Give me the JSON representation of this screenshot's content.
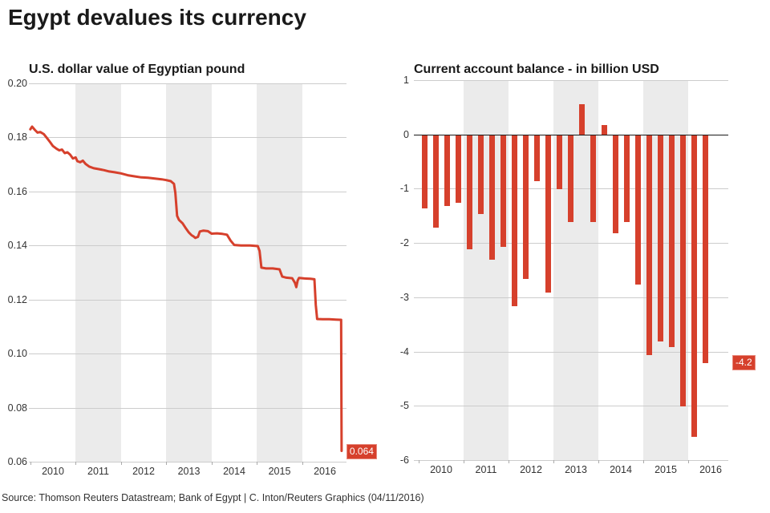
{
  "header": {
    "title": "Egypt devalues its currency"
  },
  "footer": {
    "source": "Source: Thomson Reuters Datastream; Bank of Egypt | C. Inton/Reuters Graphics (04/11/2016)"
  },
  "colors": {
    "accent_red": "#d6402c",
    "band_gray": "#ebebeb",
    "gridline_gray": "#cccccc",
    "zero_line": "#1a1a1a",
    "title_text": "#1a1a1a",
    "tick_text": "#333333",
    "label_box_text": "#ffffff"
  },
  "chart_data": [
    {
      "type": "line",
      "title": "U.S. dollar value of Egyptian pound",
      "xlabel": "",
      "ylabel": "",
      "ylim": [
        0.06,
        0.2
      ],
      "xlim": [
        2009.97,
        2017.0
      ],
      "grid": "horizontal",
      "legend": "none",
      "shaded_years": [
        2011,
        2013,
        2015
      ],
      "y_ticks": [
        "0.20",
        "0.18",
        "0.16",
        "0.14",
        "0.12",
        "0.10",
        "0.08",
        "0.06"
      ],
      "y_tick_values": [
        0.2,
        0.18,
        0.16,
        0.14,
        0.12,
        0.1,
        0.08,
        0.06
      ],
      "x_ticks": [
        "2010",
        "2011",
        "2012",
        "2013",
        "2014",
        "2015",
        "2016"
      ],
      "x_tick_values": [
        2010,
        2011,
        2012,
        2013,
        2014,
        2015,
        2016
      ],
      "end_label": "0.064",
      "end_value": 0.064,
      "series": [
        {
          "name": "U.S. dollar value of Egyptian pound",
          "color": "#d6402c",
          "points": [
            [
              2010.0,
              0.183
            ],
            [
              2010.04,
              0.184
            ],
            [
              2010.1,
              0.1828
            ],
            [
              2010.16,
              0.1818
            ],
            [
              2010.22,
              0.182
            ],
            [
              2010.3,
              0.1812
            ],
            [
              2010.38,
              0.1795
            ],
            [
              2010.44,
              0.1782
            ],
            [
              2010.5,
              0.1768
            ],
            [
              2010.58,
              0.1758
            ],
            [
              2010.64,
              0.1752
            ],
            [
              2010.7,
              0.1755
            ],
            [
              2010.76,
              0.1742
            ],
            [
              2010.82,
              0.1745
            ],
            [
              2010.88,
              0.1736
            ],
            [
              2010.94,
              0.1722
            ],
            [
              2011.0,
              0.1726
            ],
            [
              2011.04,
              0.1712
            ],
            [
              2011.1,
              0.1708
            ],
            [
              2011.16,
              0.1714
            ],
            [
              2011.22,
              0.1702
            ],
            [
              2011.3,
              0.1692
            ],
            [
              2011.4,
              0.1686
            ],
            [
              2011.5,
              0.1683
            ],
            [
              2011.62,
              0.1679
            ],
            [
              2011.74,
              0.1674
            ],
            [
              2011.86,
              0.1671
            ],
            [
              2012.0,
              0.1667
            ],
            [
              2012.15,
              0.166
            ],
            [
              2012.3,
              0.1656
            ],
            [
              2012.45,
              0.1652
            ],
            [
              2012.6,
              0.1651
            ],
            [
              2012.75,
              0.1648
            ],
            [
              2012.9,
              0.1645
            ],
            [
              2013.0,
              0.1642
            ],
            [
              2013.1,
              0.1638
            ],
            [
              2013.17,
              0.1628
            ],
            [
              2013.2,
              0.1595
            ],
            [
              2013.24,
              0.151
            ],
            [
              2013.28,
              0.1495
            ],
            [
              2013.36,
              0.1482
            ],
            [
              2013.44,
              0.1462
            ],
            [
              2013.5,
              0.1448
            ],
            [
              2013.56,
              0.1438
            ],
            [
              2013.6,
              0.1434
            ],
            [
              2013.64,
              0.1428
            ],
            [
              2013.7,
              0.1432
            ],
            [
              2013.74,
              0.1452
            ],
            [
              2013.82,
              0.1455
            ],
            [
              2013.92,
              0.1453
            ],
            [
              2014.0,
              0.1444
            ],
            [
              2014.12,
              0.1445
            ],
            [
              2014.24,
              0.1443
            ],
            [
              2014.34,
              0.144
            ],
            [
              2014.42,
              0.1418
            ],
            [
              2014.5,
              0.1402
            ],
            [
              2014.65,
              0.14
            ],
            [
              2014.85,
              0.14
            ],
            [
              2015.02,
              0.1398
            ],
            [
              2015.06,
              0.138
            ],
            [
              2015.1,
              0.1318
            ],
            [
              2015.2,
              0.1315
            ],
            [
              2015.35,
              0.1315
            ],
            [
              2015.5,
              0.1312
            ],
            [
              2015.56,
              0.1285
            ],
            [
              2015.65,
              0.1281
            ],
            [
              2015.78,
              0.1279
            ],
            [
              2015.84,
              0.1262
            ],
            [
              2015.87,
              0.1246
            ],
            [
              2015.9,
              0.127
            ],
            [
              2015.93,
              0.128
            ],
            [
              2016.05,
              0.1278
            ],
            [
              2016.18,
              0.1277
            ],
            [
              2016.27,
              0.1275
            ],
            [
              2016.3,
              0.118
            ],
            [
              2016.33,
              0.1128
            ],
            [
              2016.45,
              0.1127
            ],
            [
              2016.6,
              0.1127
            ],
            [
              2016.75,
              0.1126
            ],
            [
              2016.86,
              0.1125
            ],
            [
              2016.87,
              0.064
            ]
          ]
        }
      ]
    },
    {
      "type": "bar",
      "title": "Current account balance - in billion USD",
      "xlabel": "",
      "ylabel": "",
      "ylim": [
        -6,
        1
      ],
      "grid": "horizontal",
      "legend": "none",
      "bar_color": "#d6402c",
      "shaded_years": [
        2011,
        2013,
        2015
      ],
      "y_ticks": [
        "1",
        "0",
        "-1",
        "-2",
        "-3",
        "-4",
        "-5",
        "-6"
      ],
      "y_tick_values": [
        1,
        0,
        -1,
        -2,
        -3,
        -4,
        -5,
        -6
      ],
      "x_ticks": [
        "2010",
        "2011",
        "2012",
        "2013",
        "2014",
        "2015",
        "2016"
      ],
      "x_tick_values": [
        2010,
        2011,
        2012,
        2013,
        2014,
        2015,
        2016
      ],
      "end_label": "-4.2",
      "end_value": -4.2,
      "categories": [
        "2010 Q1",
        "2010 Q2",
        "2010 Q3",
        "2010 Q4",
        "2011 Q1",
        "2011 Q2",
        "2011 Q3",
        "2011 Q4",
        "2012 Q1",
        "2012 Q2",
        "2012 Q3",
        "2012 Q4",
        "2013 Q1",
        "2013 Q2",
        "2013 Q3",
        "2013 Q4",
        "2014 Q1",
        "2014 Q2",
        "2014 Q3",
        "2014 Q4",
        "2015 Q1",
        "2015 Q2",
        "2015 Q3",
        "2015 Q4",
        "2016 Q1",
        "2016 Q2"
      ],
      "values": [
        -1.35,
        -1.7,
        -1.3,
        -1.25,
        -2.1,
        -1.45,
        -2.3,
        -2.05,
        -3.15,
        -2.65,
        -0.85,
        -2.9,
        -1.0,
        -1.6,
        0.55,
        -1.6,
        0.18,
        -1.8,
        -1.6,
        -2.75,
        -4.05,
        -3.8,
        -3.9,
        -5.0,
        -5.55,
        -4.2
      ]
    }
  ]
}
